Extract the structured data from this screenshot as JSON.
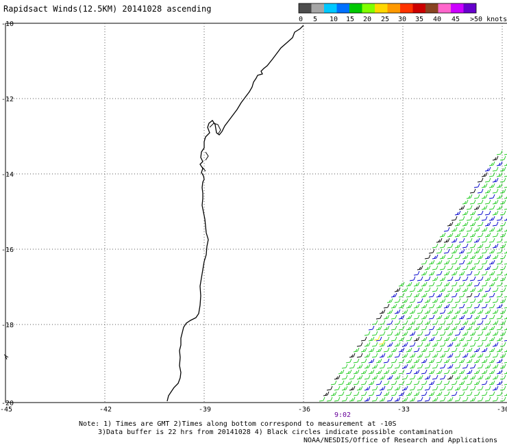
{
  "title": "Rapidsact Winds(12.5KM) 20141028 ascending",
  "colorbar": {
    "colors": [
      "#4d4d4d",
      "#a6a6a6",
      "#00c8ff",
      "#0070ff",
      "#00c800",
      "#80ff00",
      "#ffd700",
      "#ff9900",
      "#ff3300",
      "#cc0000",
      "#884422",
      "#ff66cc",
      "#cc00ff",
      "#6600cc"
    ],
    "labels": [
      "0",
      "5",
      "10",
      "15",
      "20",
      "25",
      "30",
      "35",
      "40",
      "45",
      ">50 knots"
    ]
  },
  "axes": {
    "lat_labels": [
      "-10",
      "-12",
      "-14",
      "-16",
      "-18",
      "-20"
    ],
    "lon_labels": [
      "-45",
      "-42",
      "-39",
      "-36",
      "-33",
      "-30"
    ]
  },
  "time_label": "9:02",
  "notes": {
    "line1": "Note: 1) Times are GMT 2)Times along bottom correspond to measurement at -10S",
    "line2": "3)Data buffer is 22 hrs from 20141028 4) Black circles indicate possible contamination",
    "credit": "NOAA/NESDIS/Office of Research and Applications"
  },
  "wind_colors": {
    "green": "#22cc22",
    "blue": "#0000cc",
    "black": "#000000",
    "yellow": "#ffee00"
  }
}
